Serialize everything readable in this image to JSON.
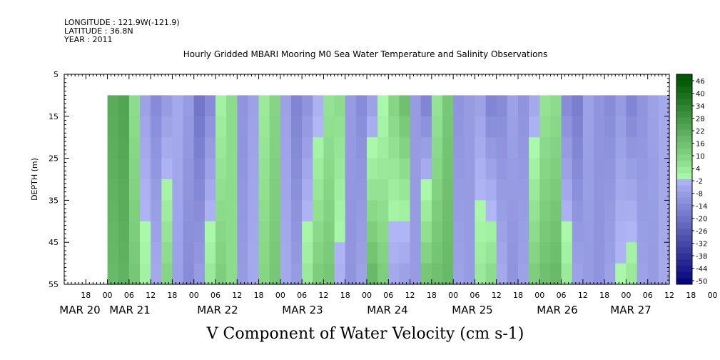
{
  "header": {
    "longitude": "LONGITUDE : 121.9W(-121.9)",
    "latitude": "LATITUDE : 36.8N",
    "year": "YEAR : 2011"
  },
  "chart_data": {
    "type": "heatmap",
    "title": "Hourly Gridded MBARI Mooring M0 Sea Water Temperature and Salinity Observations",
    "xlabel": "V Component of Water Velocity (cm s-1)",
    "ylabel": "DEPTH (m)",
    "y_axis": {
      "range": [
        5,
        55
      ],
      "inverted": true,
      "ticks": [
        5,
        15,
        25,
        35,
        45,
        55
      ]
    },
    "data_depth_range": [
      10,
      55
    ],
    "x_axis": {
      "hour_ticks": [
        "18",
        "00",
        "06",
        "12",
        "18",
        "00",
        "06",
        "12",
        "18",
        "00",
        "06",
        "12",
        "18",
        "00",
        "06",
        "12",
        "18",
        "00",
        "06",
        "12",
        "18",
        "00",
        "06",
        "12",
        "18",
        "00",
        "06",
        "12",
        "18",
        "00",
        "06",
        "12"
      ],
      "day_labels": [
        "MAR 20",
        "MAR 21",
        "MAR 22",
        "MAR 23",
        "MAR 24",
        "MAR 25",
        "MAR 26",
        "MAR 27"
      ],
      "range_hours": [
        -12,
        156
      ]
    },
    "colorbar": {
      "labels": [
        "46",
        "40",
        "34",
        "28",
        "22",
        "16",
        "10",
        "4",
        "-2",
        "-8",
        "-14",
        "-20",
        "-26",
        "-32",
        "-38",
        "-44",
        "-50"
      ],
      "min": -50,
      "max": 49
    },
    "approx_pattern": {
      "time_hours": [
        0,
        3,
        6,
        9,
        12,
        15,
        18,
        21,
        24,
        27,
        30,
        33,
        36,
        39,
        42,
        45,
        48,
        51,
        54,
        57,
        60,
        63,
        66,
        69,
        72,
        75,
        78,
        81,
        84,
        87,
        90,
        93,
        96,
        99,
        102,
        105,
        108,
        111,
        114,
        117,
        120,
        123,
        126,
        129,
        132,
        135,
        138,
        141,
        144,
        147,
        150,
        153,
        156
      ],
      "velocity_shallow": [
        22,
        24,
        8,
        -6,
        -12,
        -8,
        -4,
        -8,
        -18,
        -12,
        2,
        8,
        -10,
        -6,
        4,
        10,
        -6,
        -14,
        -10,
        -2,
        6,
        8,
        -8,
        -12,
        -6,
        0,
        10,
        16,
        -8,
        -14,
        6,
        14,
        -10,
        -8,
        -6,
        -14,
        -12,
        -6,
        -10,
        -4,
        6,
        8,
        -12,
        -16,
        -6,
        -10,
        -12,
        -8,
        -14,
        -10,
        -6,
        -4,
        6
      ],
      "velocity_deep": [
        18,
        20,
        14,
        2,
        -4,
        10,
        -6,
        -12,
        -8,
        4,
        12,
        8,
        -8,
        -4,
        10,
        14,
        -4,
        -8,
        4,
        12,
        14,
        -2,
        -10,
        -6,
        18,
        12,
        -4,
        -6,
        -8,
        14,
        16,
        18,
        -6,
        -8,
        4,
        8,
        -4,
        -10,
        -6,
        12,
        16,
        18,
        4,
        -6,
        -8,
        -10,
        -6,
        0,
        4,
        -6,
        -8,
        -4,
        2
      ]
    }
  }
}
